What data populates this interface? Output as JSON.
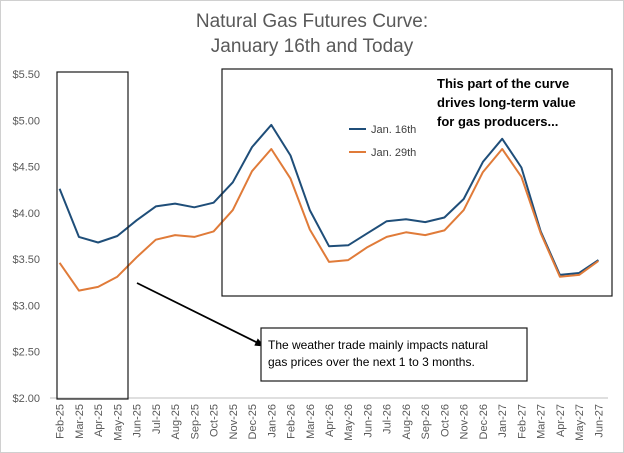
{
  "chart_data": {
    "type": "line",
    "title": "Natural Gas Futures Curve:",
    "subtitle": "January 16th and Today",
    "categories": [
      "Feb-25",
      "Mar-25",
      "Apr-25",
      "May-25",
      "Jun-25",
      "Jul-25",
      "Aug-25",
      "Sep-25",
      "Oct-25",
      "Nov-25",
      "Dec-25",
      "Jan-26",
      "Feb-26",
      "Mar-26",
      "Apr-26",
      "May-26",
      "Jun-26",
      "Jul-26",
      "Aug-26",
      "Sep-26",
      "Oct-26",
      "Nov-26",
      "Dec-26",
      "Jan-27",
      "Feb-27",
      "Mar-27",
      "Apr-27",
      "May-27",
      "Jun-27"
    ],
    "series": [
      {
        "name": "Jan. 16th",
        "color": "#1f4e79",
        "values": [
          4.26,
          3.74,
          3.68,
          3.75,
          3.92,
          4.07,
          4.1,
          4.06,
          4.11,
          4.33,
          4.71,
          4.95,
          4.62,
          4.03,
          3.64,
          3.65,
          3.78,
          3.91,
          3.93,
          3.9,
          3.95,
          4.15,
          4.55,
          4.8,
          4.49,
          3.8,
          3.33,
          3.35,
          3.49
        ]
      },
      {
        "name": "Jan. 29th",
        "color": "#e07b39",
        "values": [
          3.46,
          3.16,
          3.2,
          3.31,
          3.52,
          3.71,
          3.76,
          3.74,
          3.8,
          4.03,
          4.45,
          4.69,
          4.37,
          3.82,
          3.47,
          3.49,
          3.63,
          3.74,
          3.79,
          3.76,
          3.81,
          4.03,
          4.44,
          4.69,
          4.39,
          3.78,
          3.31,
          3.33,
          3.48
        ]
      }
    ],
    "yticks": [
      "$2.00",
      "$2.50",
      "$3.00",
      "$3.50",
      "$4.00",
      "$4.50",
      "$5.00",
      "$5.50"
    ],
    "ylim": [
      2.0,
      5.5
    ],
    "grid": false,
    "legend_position": "inside-top-center",
    "annotations": {
      "long_term": [
        "This part of the curve",
        "drives long-term value",
        "for gas producers..."
      ],
      "weather": [
        "The weather trade mainly impacts natural",
        "gas prices over the next 1 to 3 months."
      ]
    }
  }
}
